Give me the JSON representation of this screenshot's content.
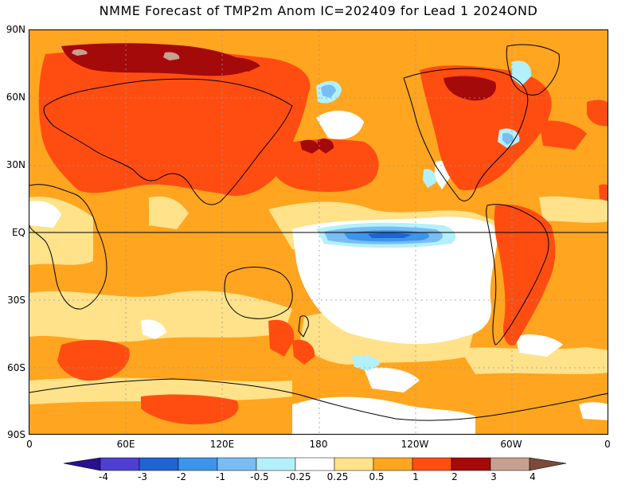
{
  "title": "NMME Forecast of TMP2m Anom IC=202409 for Lead 1 2024OND",
  "y_axis_labels": [
    "90N",
    "60N",
    "30N",
    "EQ",
    "30S",
    "60S",
    "90S"
  ],
  "x_axis_labels": [
    "0",
    "60E",
    "120E",
    "180",
    "120W",
    "60W",
    "0"
  ],
  "colorbar": {
    "labels": [
      "-4",
      "-3",
      "-2",
      "-1",
      "-0.5",
      "-0.25",
      "0.25",
      "0.5",
      "1",
      "2",
      "3",
      "4"
    ],
    "colors": [
      "#2a0f8f",
      "#4f3fd0",
      "#1e64d2",
      "#3c95ea",
      "#78bdf3",
      "#b4f0fa",
      "#ffffff",
      "#ffe28a",
      "#ffa51f",
      "#ff4d12",
      "#a50a0a",
      "#c8a090",
      "#7a4a3a"
    ]
  },
  "map_colors": {
    "background": "#ffa51f",
    "light": "#ffe28a",
    "red": "#ff4d12",
    "darkred": "#a50a0a",
    "brown": "#c8a090",
    "neutral": "#ffffff",
    "lightcyan": "#b4f0fa",
    "lightblue": "#78bdf3",
    "blue": "#3c95ea",
    "darkblue": "#1e64d2"
  }
}
